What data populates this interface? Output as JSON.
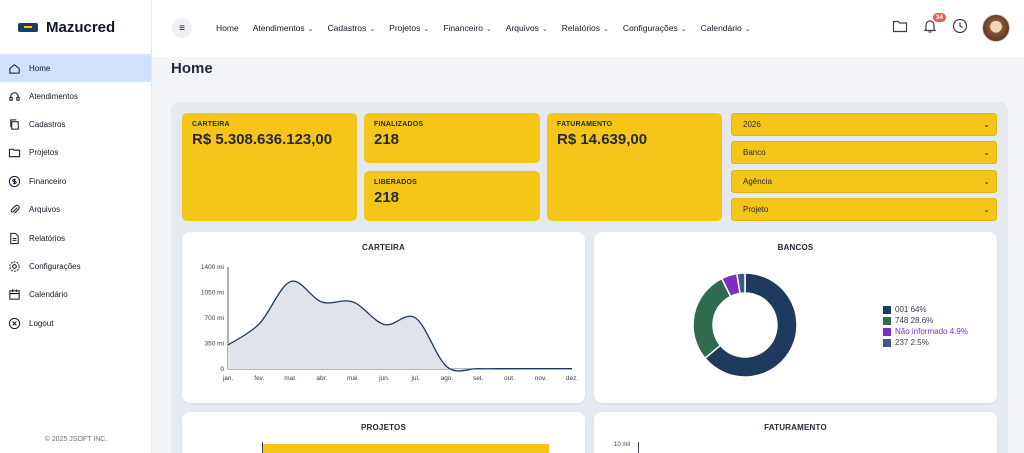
{
  "app": {
    "name": "Mazucred",
    "copyright": "© 2025 JSOFT INC."
  },
  "sidebar": {
    "items": [
      {
        "label": "Home",
        "icon": "home-icon",
        "active": true
      },
      {
        "label": "Atendimentos",
        "icon": "headset-icon"
      },
      {
        "label": "Cadastros",
        "icon": "copy-icon"
      },
      {
        "label": "Projetos",
        "icon": "folder-icon"
      },
      {
        "label": "Financeiro",
        "icon": "dollar-icon"
      },
      {
        "label": "Arquivos",
        "icon": "paperclip-icon"
      },
      {
        "label": "Relatórios",
        "icon": "document-icon"
      },
      {
        "label": "Configurações",
        "icon": "gear-icon"
      },
      {
        "label": "Calendário",
        "icon": "calendar-icon"
      },
      {
        "label": "Logout",
        "icon": "logout-icon"
      }
    ]
  },
  "topmenu": {
    "toggle_icon": "≡",
    "items": [
      {
        "label": "Home",
        "dropdown": false
      },
      {
        "label": "Atendimentos",
        "dropdown": true
      },
      {
        "label": "Cadastros",
        "dropdown": true
      },
      {
        "label": "Projetos",
        "dropdown": true
      },
      {
        "label": "Financeiro",
        "dropdown": true
      },
      {
        "label": "Arquivos",
        "dropdown": true
      },
      {
        "label": "Relatórios",
        "dropdown": true
      },
      {
        "label": "Configurações",
        "dropdown": true
      },
      {
        "label": "Calendário",
        "dropdown": true
      }
    ],
    "notifications": "34"
  },
  "page": {
    "title": "Home"
  },
  "cards": {
    "carteira": {
      "label": "CARTEIRA",
      "value": "R$ 5.308.636.123,00"
    },
    "finalizados": {
      "label": "FINALIZADOS",
      "value": "218"
    },
    "liberados": {
      "label": "LIBERADOS",
      "value": "218"
    },
    "faturamento": {
      "label": "FATURAMENTO",
      "value": "R$ 14.639,00"
    }
  },
  "filters": {
    "year": "2026",
    "banco": "Banco",
    "agencia": "Agência",
    "projeto": "Projeto"
  },
  "colors": {
    "accent": "#f5c518",
    "navy": "#1e3a5f",
    "green": "#2e6b4f",
    "purple": "#7b2fbe",
    "slate": "#3d5a80",
    "active": "#cfe2fb"
  },
  "panels": {
    "carteira": "CARTEIRA",
    "bancos": "BANCOS",
    "projetos": "PROJETOS",
    "faturamento": "FATURAMENTO",
    "faturamento_tick": "10 mil"
  },
  "chart_data": [
    {
      "type": "area",
      "title": "CARTEIRA",
      "categories": [
        "jan.",
        "fev.",
        "mar.",
        "abr.",
        "mai.",
        "jun.",
        "jul.",
        "ago.",
        "set.",
        "out.",
        "nov.",
        "dez."
      ],
      "values": [
        330,
        620,
        1200,
        920,
        920,
        610,
        700,
        30,
        5,
        5,
        5,
        5
      ],
      "yticks": [
        "0",
        "350 mi",
        "700 mi",
        "1050 mi",
        "1400 mi"
      ],
      "ylim": [
        0,
        1400
      ],
      "unit": "mi"
    },
    {
      "type": "pie",
      "title": "BANCOS",
      "donut": true,
      "slices": [
        {
          "label": "001",
          "pct": "64%",
          "value": 64,
          "color": "#1e3a5f"
        },
        {
          "label": "748",
          "pct": "28.6%",
          "value": 28.6,
          "color": "#2e6b4f"
        },
        {
          "label": "Não informado",
          "pct": "4.9%",
          "value": 4.9,
          "color": "#7b2fbe"
        },
        {
          "label": "237",
          "pct": "2.5%",
          "value": 2.5,
          "color": "#3d5a80"
        }
      ],
      "legend_position": "right"
    }
  ]
}
